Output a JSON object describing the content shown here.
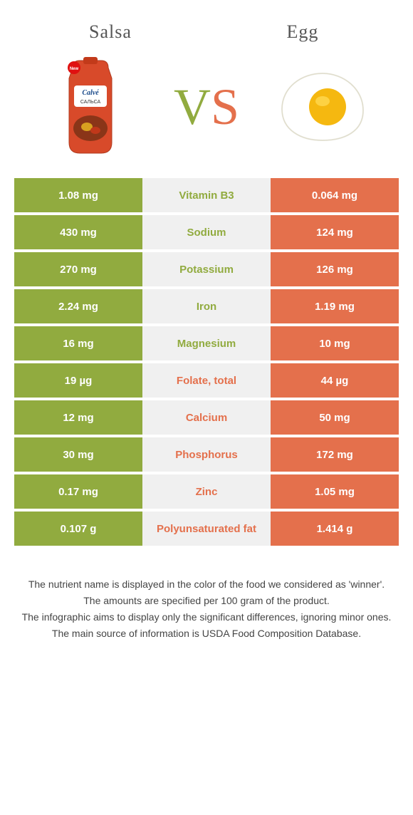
{
  "title_left": "Salsa",
  "title_right": "Egg",
  "vs_v": "V",
  "vs_s": "S",
  "colors": {
    "left_bg": "#91ab3f",
    "right_bg": "#e4704c",
    "mid_bg": "#f0f0f0",
    "left_winner_text": "#91ab3f",
    "right_winner_text": "#e4704c",
    "white": "#ffffff"
  },
  "rows": [
    {
      "left": "1.08 mg",
      "mid": "Vitamin B3",
      "right": "0.064 mg",
      "winner": "left"
    },
    {
      "left": "430 mg",
      "mid": "Sodium",
      "right": "124 mg",
      "winner": "left"
    },
    {
      "left": "270 mg",
      "mid": "Potassium",
      "right": "126 mg",
      "winner": "left"
    },
    {
      "left": "2.24 mg",
      "mid": "Iron",
      "right": "1.19 mg",
      "winner": "left"
    },
    {
      "left": "16 mg",
      "mid": "Magnesium",
      "right": "10 mg",
      "winner": "left"
    },
    {
      "left": "19 µg",
      "mid": "Folate, total",
      "right": "44 µg",
      "winner": "right"
    },
    {
      "left": "12 mg",
      "mid": "Calcium",
      "right": "50 mg",
      "winner": "right"
    },
    {
      "left": "30 mg",
      "mid": "Phosphorus",
      "right": "172 mg",
      "winner": "right"
    },
    {
      "left": "0.17 mg",
      "mid": "Zinc",
      "right": "1.05 mg",
      "winner": "right"
    },
    {
      "left": "0.107 g",
      "mid": "Polyunsaturated fat",
      "right": "1.414 g",
      "winner": "right"
    }
  ],
  "footer": [
    "The nutrient name is displayed in the color of the food we considered as 'winner'.",
    "The amounts are specified per 100 gram of the product.",
    "The infographic aims to display only the significant differences, ignoring minor ones.",
    "The main source of information is USDA Food Composition Database."
  ]
}
